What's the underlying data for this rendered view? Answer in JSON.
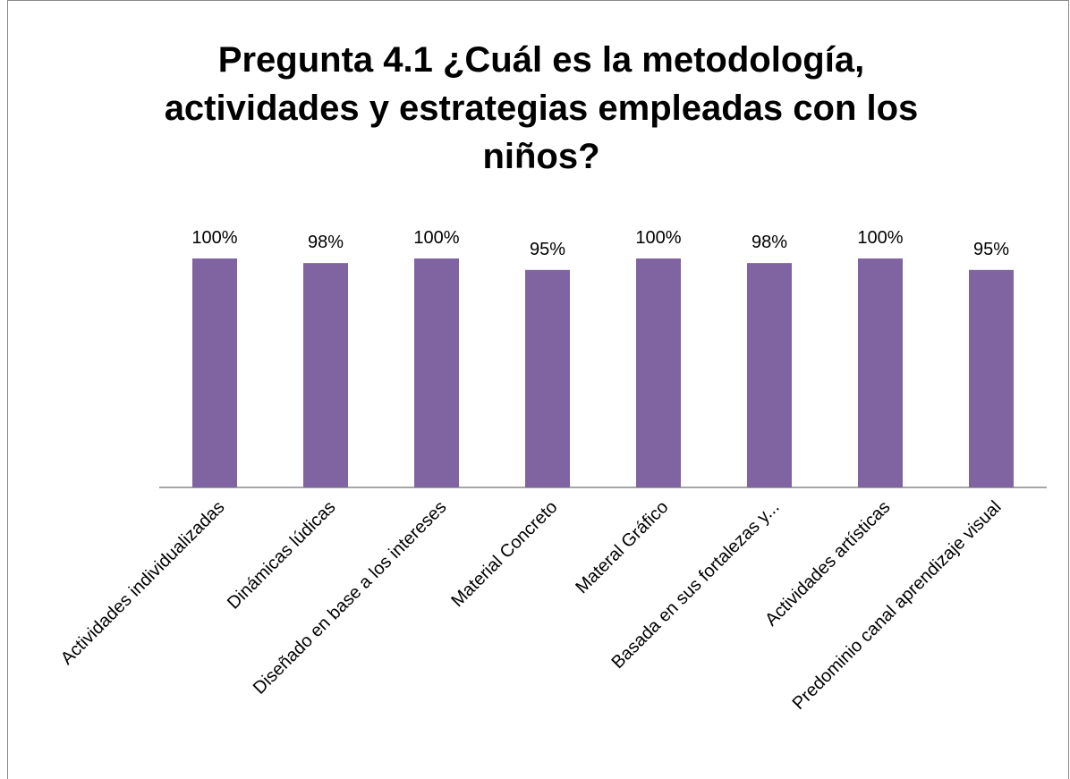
{
  "chart_data": {
    "type": "bar",
    "title": "Pregunta 4.1 ¿Cuál es la metodología, actividades y estrategias empleadas con los niños?",
    "categories": [
      "Actividades individualizadas",
      "Dinámicas lúdicas",
      "Diseñado en base a los intereses",
      "Material Concreto",
      "Materal Gráfico",
      "Basada en sus fortalezas y...",
      "Actividades artísticas",
      "Predominio canal aprendizaje visual"
    ],
    "values": [
      100,
      98,
      100,
      95,
      100,
      98,
      100,
      95
    ],
    "value_labels": [
      "100%",
      "98%",
      "100%",
      "95%",
      "100%",
      "98%",
      "100%",
      "95%"
    ],
    "color": "#8064a2",
    "ylim": [
      0,
      100
    ]
  }
}
